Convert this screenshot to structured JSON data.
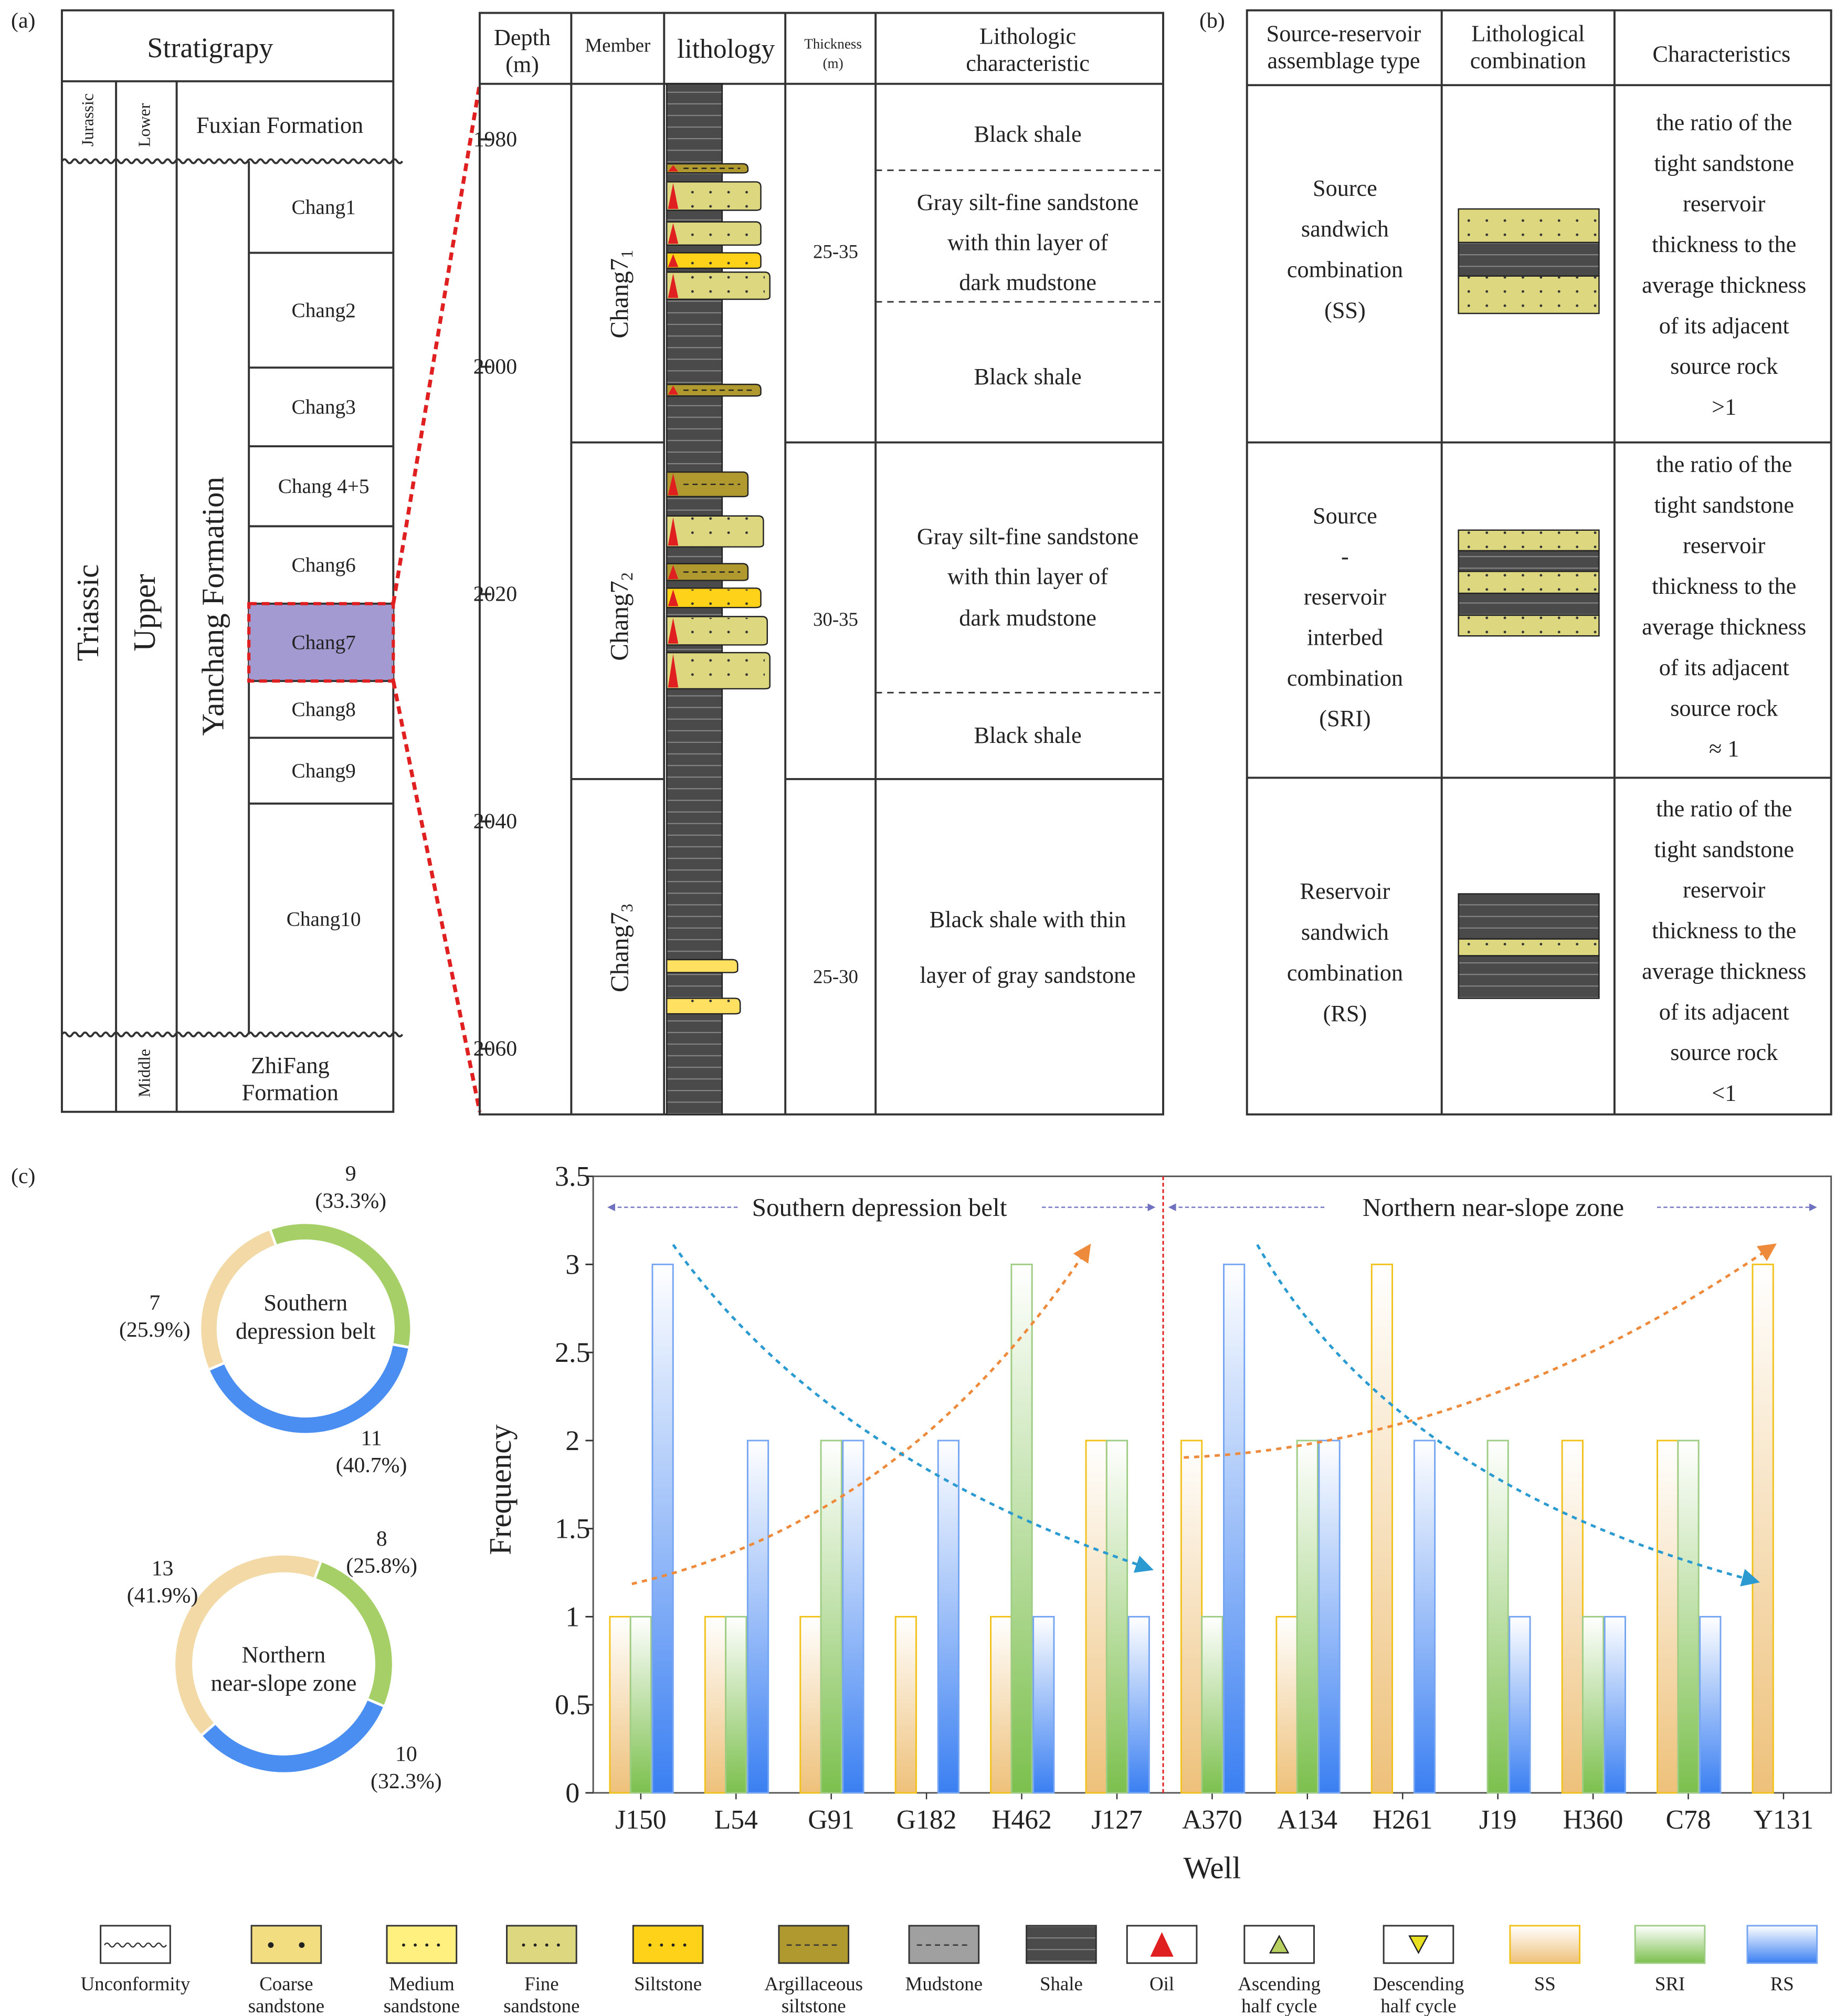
{
  "figure_labels": {
    "a": "(a)",
    "b": "(b)",
    "c": "(c)"
  },
  "stratigraphy": {
    "title": "Stratigrapy",
    "systems": [
      "Jurassic",
      "Triassic"
    ],
    "series": [
      "Lower",
      "Upper",
      "Middle"
    ],
    "formations": [
      "Fuxian Formation",
      "Yanchang Formation"
    ],
    "bottom_formation_lines": [
      "ZhiFang",
      "Formation"
    ],
    "members": [
      "Chang1",
      "Chang2",
      "Chang3",
      "Chang 4+5",
      "Chang6",
      "Chang7",
      "Chang8",
      "Chang9",
      "Chang10"
    ]
  },
  "column": {
    "headers": {
      "depth": [
        "Depth",
        "(m)"
      ],
      "member": "Member",
      "lithology": "lithology",
      "thickness": [
        "Thickness",
        "(m)"
      ],
      "characteristic": [
        "Lithologic",
        "characteristic"
      ]
    },
    "depth_lim": [
      1975,
      2066
    ],
    "depth_ticks": [
      1980,
      2000,
      2020,
      2040,
      2060
    ],
    "members": [
      {
        "name": "Chang7",
        "sub": "1"
      },
      {
        "name": "Chang7",
        "sub": "2"
      },
      {
        "name": "Chang7",
        "sub": "3"
      }
    ],
    "thickness": [
      "25-35",
      "30-35",
      "25-30"
    ],
    "characteristics": [
      [
        "Black shale"
      ],
      [
        "Gray silt-fine sandstone",
        "with thin layer of",
        "dark mudstone"
      ],
      [
        "Black shale"
      ],
      [
        "Gray silt-fine sandstone",
        "with thin layer of",
        "dark mudstone"
      ],
      [
        "Black shale"
      ],
      [
        "Black shale with thin",
        "layer of gray sandstone"
      ]
    ]
  },
  "panel_b": {
    "headers": [
      [
        "Source-reservoir",
        "assemblage type"
      ],
      [
        "Lithological",
        "combination"
      ],
      [
        "Characteristics"
      ]
    ],
    "rows": [
      {
        "type": [
          "Source",
          "sandwich",
          "combination",
          "(SS)"
        ],
        "characteristics": [
          "the ratio of the",
          "tight sandstone",
          "reservoir",
          "thickness to the",
          "average thickness",
          "of its adjacent",
          "source rock",
          ">1"
        ]
      },
      {
        "type": [
          "Source",
          "-",
          "reservoir",
          "interbed",
          "combination",
          "(SRI)"
        ],
        "characteristics": [
          "the ratio of the",
          "tight sandstone",
          "reservoir",
          "thickness to the",
          "average thickness",
          "of its adjacent",
          "source rock",
          "≈ 1"
        ]
      },
      {
        "type": [
          "Reservoir",
          "sandwich",
          "combination",
          "(RS)"
        ],
        "characteristics": [
          "the ratio of the",
          "tight sandstone",
          "reservoir",
          "thickness to the",
          "average thickness",
          "of its adjacent",
          "source rock",
          "<1"
        ]
      }
    ]
  },
  "chart_data": [
    {
      "type": "pie",
      "donut": true,
      "title_lines": [
        "Southern",
        "depression belt"
      ],
      "values": [
        7,
        9,
        11
      ],
      "percent_labels": [
        "(25.9%)",
        "(33.3%)",
        "(40.7%)"
      ],
      "colors": [
        "#f2d9a6",
        "#a6cf68",
        "#4a8ef2"
      ]
    },
    {
      "type": "pie",
      "donut": true,
      "title_lines": [
        "Northern",
        "near-slope zone"
      ],
      "values": [
        13,
        8,
        10
      ],
      "percent_labels": [
        "(41.9%)",
        "(25.8%)",
        "(32.3%)"
      ],
      "colors": [
        "#f2d9a6",
        "#a6cf68",
        "#4a8ef2"
      ]
    },
    {
      "type": "bar",
      "ylabel": "Frequency",
      "xlabel": "Well",
      "annotations": [
        "Southern depression belt",
        "Northern near-slope zone"
      ],
      "categories": [
        "J150",
        "L54",
        "G91",
        "G182",
        "H462",
        "J127",
        "A370",
        "A134",
        "H261",
        "J19",
        "H360",
        "C78",
        "Y131"
      ],
      "series": [
        {
          "name": "SS",
          "color": "#eec17a",
          "stroke": "#f2c21c",
          "values": [
            1,
            1,
            1,
            1,
            1,
            2,
            2,
            1,
            3,
            0,
            2,
            2,
            3
          ]
        },
        {
          "name": "SRI",
          "color": "#7cc04e",
          "stroke": "#9fcd86",
          "values": [
            1,
            1,
            2,
            0,
            3,
            2,
            1,
            2,
            0,
            2,
            1,
            2,
            0
          ]
        },
        {
          "name": "RS",
          "color": "#3a7ff2",
          "stroke": "#76a6f2",
          "values": [
            3,
            2,
            2,
            2,
            1,
            1,
            3,
            2,
            2,
            1,
            1,
            1,
            0
          ]
        }
      ],
      "ylim": [
        0,
        3.5
      ],
      "yticks": [
        0,
        0.5,
        1,
        1.5,
        2,
        2.5,
        3,
        3.5
      ]
    }
  ],
  "legend": [
    [
      "Unconformity"
    ],
    [
      "Coarse",
      "sandstone"
    ],
    [
      "Medium",
      "sandstone"
    ],
    [
      "Fine",
      "sandstone"
    ],
    [
      "Siltstone"
    ],
    [
      "Argillaceous",
      "siltstone"
    ],
    [
      "Mudstone"
    ],
    [
      "Shale"
    ],
    [
      "Oil"
    ],
    [
      "Ascending",
      "half cycle"
    ],
    [
      "Descending",
      "half cycle"
    ]
  ]
}
